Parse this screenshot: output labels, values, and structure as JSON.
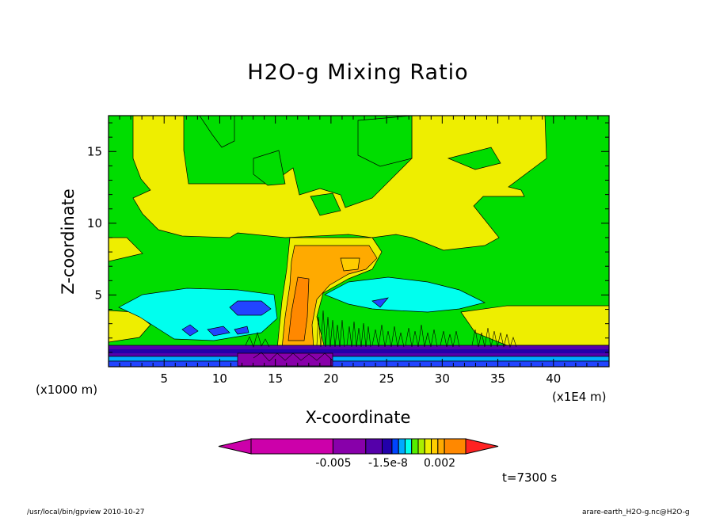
{
  "title": "H2O-g Mixing Ratio",
  "footer": {
    "left": "/usr/local/bin/gpview   2010-10-27",
    "right": "arare-earth_H2O-g.nc@H2O-g"
  },
  "time_label": "t=7300 s",
  "colorbar": {
    "colors": [
      "#cc00aa",
      "#8800aa",
      "#5500aa",
      "#2200aa",
      "#0044ff",
      "#00aaff",
      "#00ffee",
      "#55ee00",
      "#aaee00",
      "#eeee00",
      "#ffcc00",
      "#ffaa00",
      "#ff8800",
      "#ff2222"
    ],
    "tick_labels": [
      "-0.005",
      "-1.5e-8",
      "0.002"
    ]
  },
  "chart_data": {
    "type": "heatmap",
    "title": "H2O-g Mixing Ratio",
    "xlabel": "X-coordinate",
    "ylabel": "Z-coordinate",
    "x_unit": "(x1E4 m)",
    "y_unit": "(x1000 m)",
    "xlim": [
      0,
      45
    ],
    "ylim": [
      0,
      17.5
    ],
    "xticks": [
      5,
      10,
      15,
      20,
      25,
      30,
      35,
      40
    ],
    "yticks": [
      5,
      10,
      15
    ],
    "contour_levels_shown": [
      -0.005,
      -1.5e-08,
      0.002
    ],
    "background_level": "green",
    "features": [
      {
        "name": "surface moist layer (purple/blue)",
        "x": [
          0,
          45
        ],
        "z": [
          0,
          1.5
        ]
      },
      {
        "name": "convective column core (orange)",
        "x": [
          15.5,
          19.5
        ],
        "z": [
          1.5,
          8.5
        ]
      },
      {
        "name": "anvil top (orange)",
        "x": [
          16,
          24
        ],
        "z": [
          6,
          8.8
        ]
      },
      {
        "name": "mid-level cyan layer (left)",
        "x": [
          1,
          15
        ],
        "z": [
          2,
          5
        ]
      },
      {
        "name": "mid-level cyan layer (right)",
        "x": [
          20,
          34
        ],
        "z": [
          3.5,
          6
        ]
      },
      {
        "name": "upper yellow region",
        "x": [
          2,
          40
        ],
        "z": [
          9,
          17.5
        ]
      },
      {
        "name": "blue blobs",
        "x": [
          7,
          14
        ],
        "z": [
          3,
          4.5
        ]
      },
      {
        "name": "dense contour noise",
        "x": [
          13,
          36
        ],
        "z": [
          0.5,
          4
        ]
      }
    ]
  }
}
